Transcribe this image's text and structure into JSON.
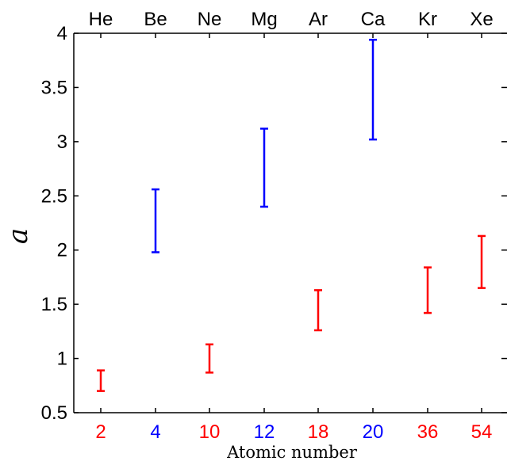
{
  "chart_data": {
    "type": "errorbar",
    "title": "",
    "xlabel": "Atomic number",
    "ylabel": "a",
    "ylim": [
      0.5,
      4
    ],
    "yticks": [
      "0.5",
      "1",
      "1.5",
      "2",
      "2.5",
      "3",
      "3.5",
      "4"
    ],
    "grid": false,
    "categories": [
      "2",
      "4",
      "10",
      "12",
      "18",
      "20",
      "36",
      "54"
    ],
    "top_labels": [
      "He",
      "Be",
      "Ne",
      "Mg",
      "Ar",
      "Ca",
      "Kr",
      "Xe"
    ],
    "points": [
      {
        "x": "2",
        "element": "He",
        "low": 0.7,
        "high": 0.89,
        "color": "#ff0000"
      },
      {
        "x": "4",
        "element": "Be",
        "low": 1.98,
        "high": 2.56,
        "color": "#0000ff"
      },
      {
        "x": "10",
        "element": "Ne",
        "low": 0.87,
        "high": 1.13,
        "color": "#ff0000"
      },
      {
        "x": "12",
        "element": "Mg",
        "low": 2.4,
        "high": 3.12,
        "color": "#0000ff"
      },
      {
        "x": "18",
        "element": "Ar",
        "low": 1.26,
        "high": 1.63,
        "color": "#ff0000"
      },
      {
        "x": "20",
        "element": "Ca",
        "low": 3.02,
        "high": 3.94,
        "color": "#0000ff"
      },
      {
        "x": "36",
        "element": "Kr",
        "low": 1.42,
        "high": 1.84,
        "color": "#ff0000"
      },
      {
        "x": "54",
        "element": "Xe",
        "low": 1.65,
        "high": 2.13,
        "color": "#ff0000"
      }
    ],
    "colors": {
      "red": "#ff0000",
      "blue": "#0000ff",
      "axis": "#000000"
    }
  }
}
